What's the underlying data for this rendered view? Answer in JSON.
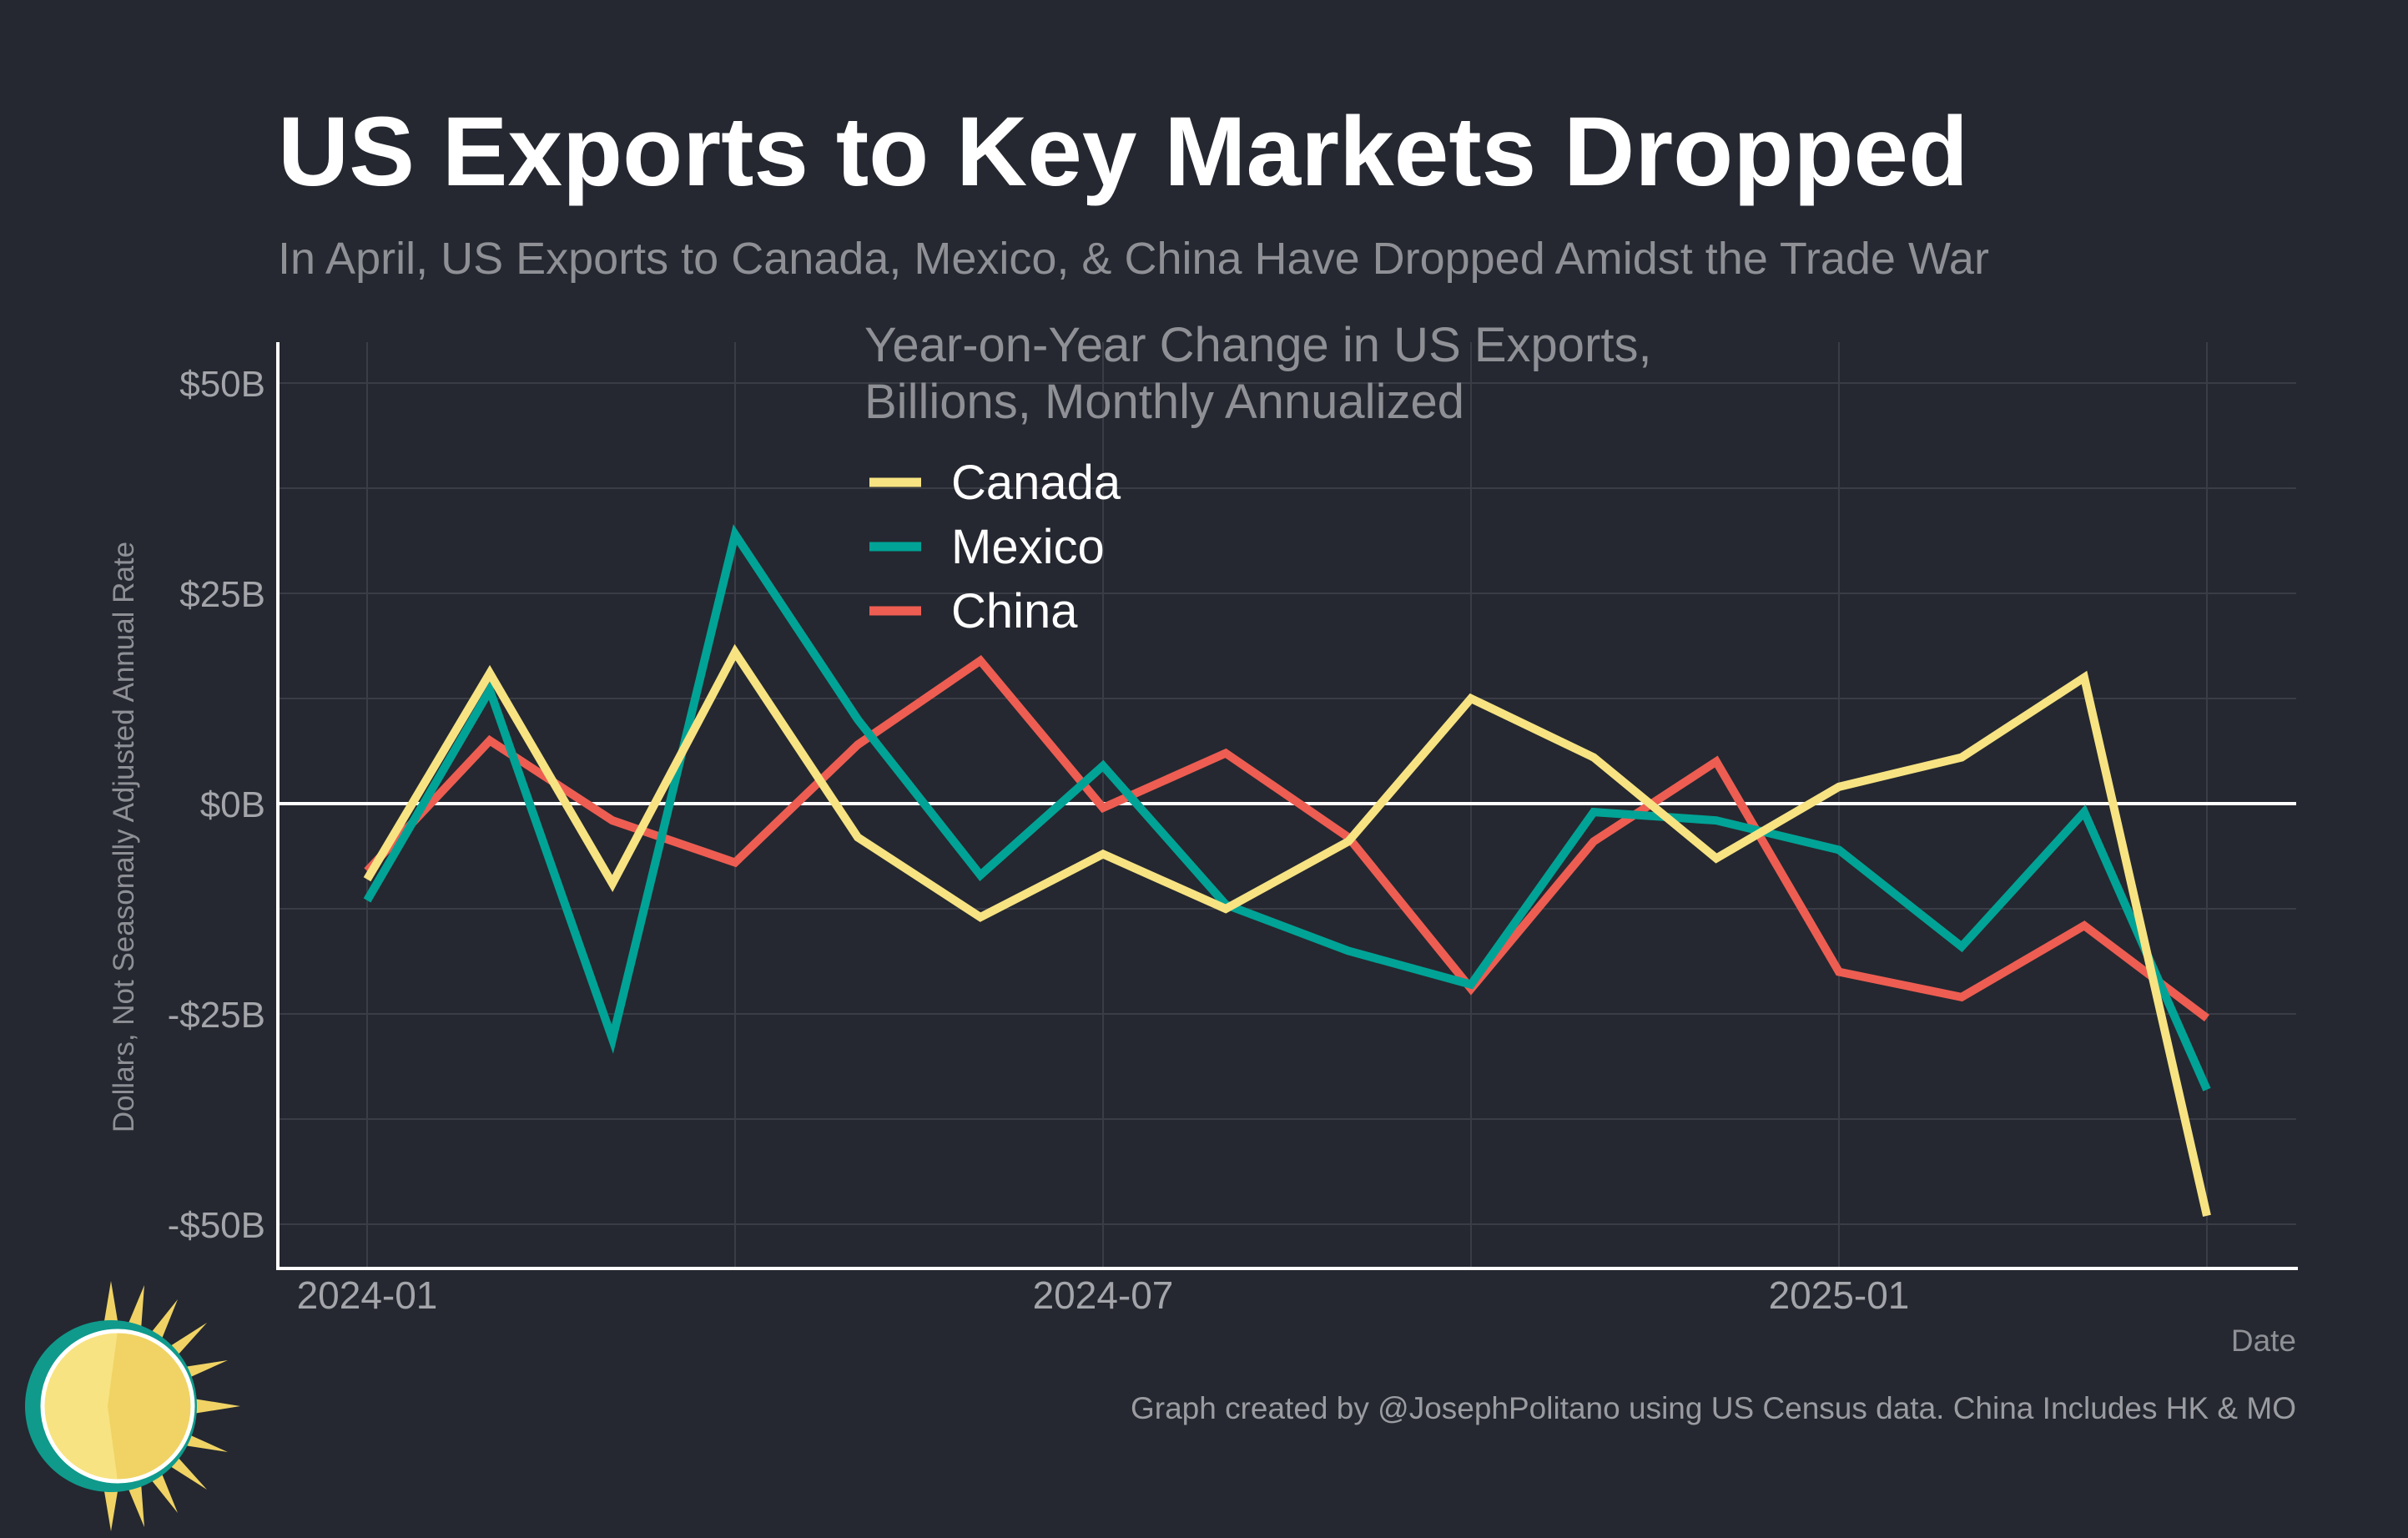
{
  "colors": {
    "background": "#252830",
    "grid": "#3a3d45",
    "zero_line": "#ffffff",
    "canada": "#f7e382",
    "mexico": "#00a396",
    "china": "#ee5d52"
  },
  "chart_data": {
    "type": "line",
    "title": "US Exports to Key Markets Dropped",
    "subtitle": "In April, US Exports to Canada, Mexico, & China Have Dropped Amidst the Trade War",
    "xlabel": "Date",
    "ylabel": "Dollars, Not Seasonally Adjusted Annual Rate",
    "legend_title_line1": "Year-on-Year Change in US Exports,",
    "legend_title_line2": "Billions, Monthly Annualized",
    "legend_position": "top-center",
    "ylim": [
      -55,
      55
    ],
    "yticks": [
      {
        "value": 50,
        "label": "$50B"
      },
      {
        "value": 25,
        "label": "$25B"
      },
      {
        "value": 0,
        "label": "$0B"
      },
      {
        "value": -25,
        "label": "-$25B"
      },
      {
        "value": -50,
        "label": "-$50B"
      }
    ],
    "xticks": [
      {
        "index": 0,
        "label": "2024-01"
      },
      {
        "index": 6,
        "label": "2024-07"
      },
      {
        "index": 12,
        "label": "2025-01"
      }
    ],
    "x": [
      "2024-01",
      "2024-02",
      "2024-03",
      "2024-04",
      "2024-05",
      "2024-06",
      "2024-07",
      "2024-08",
      "2024-09",
      "2024-10",
      "2024-11",
      "2024-12",
      "2025-01",
      "2025-02",
      "2025-03",
      "2025-04"
    ],
    "series": [
      {
        "name": "Canada",
        "color_key": "canada",
        "values": [
          -9,
          15.5,
          -9.5,
          18,
          -4,
          -13.5,
          -6,
          -12.5,
          -4.5,
          12.5,
          5.5,
          -6.5,
          2,
          5.5,
          15,
          -49
        ]
      },
      {
        "name": "Mexico",
        "color_key": "mexico",
        "values": [
          -11.5,
          13.5,
          -28,
          32,
          10,
          -8.5,
          4.5,
          -12,
          -17.5,
          -21.5,
          -1,
          -2,
          -5.5,
          -17,
          -1,
          -34
        ]
      },
      {
        "name": "China",
        "color_key": "china",
        "values": [
          -8,
          7.5,
          -2,
          -7,
          7,
          17,
          -0.5,
          6,
          -4,
          -22,
          -4.5,
          5,
          -20,
          -23,
          -14.5,
          -25.5
        ]
      }
    ]
  },
  "footer": {
    "caption": "Graph created by @JosephPolitano using US Census data. China Includes HK & MO",
    "logo_icon": "sun-logo-icon"
  }
}
